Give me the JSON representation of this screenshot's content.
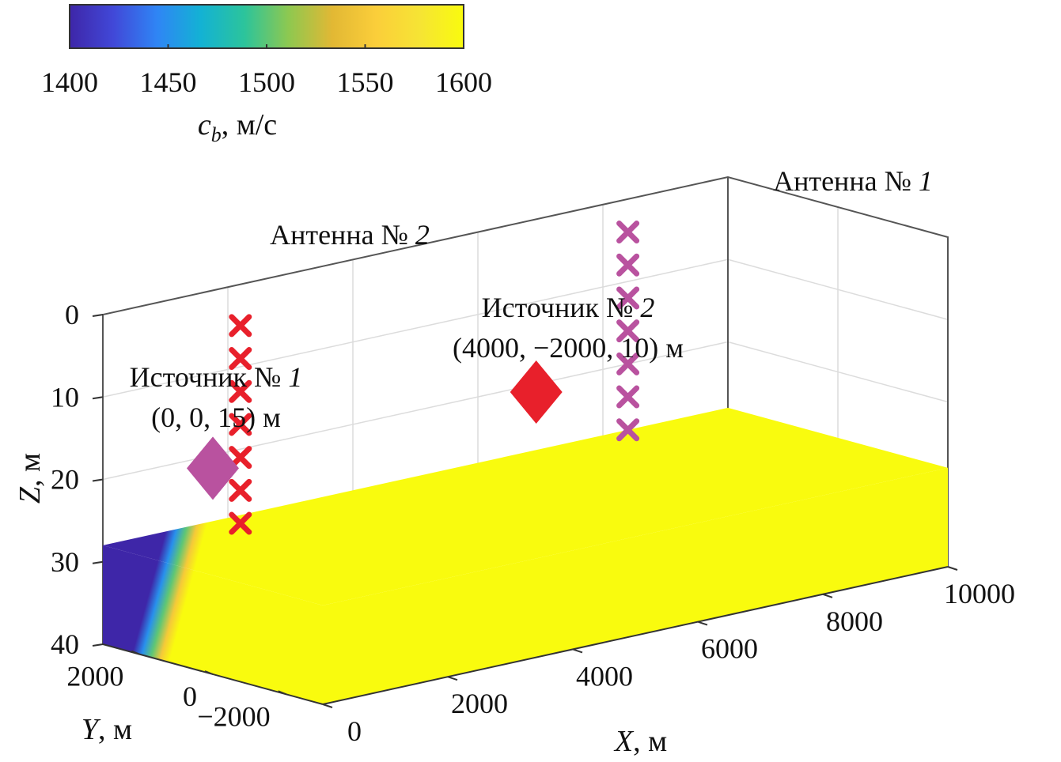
{
  "chart_data": {
    "type": "3d-scene",
    "colorbar": {
      "ticks": [
        "1400",
        "1450",
        "1500",
        "1550",
        "1600"
      ],
      "range": [
        1400,
        1600
      ],
      "label_var": "c",
      "label_sub": "b",
      "label_unit": ", м/с",
      "colormap": [
        "#3e26a8",
        "#4148d8",
        "#2f85f5",
        "#13b2d4",
        "#2cc49b",
        "#8ec850",
        "#e2b834",
        "#fbce3a",
        "#f6e434",
        "#f9fb0e"
      ]
    },
    "axes": {
      "x": {
        "var": "X",
        "unit": ", м",
        "ticks": [
          "0",
          "2000",
          "4000",
          "6000",
          "8000",
          "10000"
        ],
        "range": [
          0,
          10000
        ]
      },
      "y": {
        "var": "Y",
        "unit": ", м",
        "ticks": [
          "2000",
          "0",
          "−2000"
        ],
        "range": [
          -3000,
          3000
        ]
      },
      "z": {
        "var": "Z",
        "unit": ", м",
        "ticks": [
          "0",
          "10",
          "20",
          "30",
          "40"
        ],
        "range": [
          0,
          40
        ]
      },
      "grid": true
    },
    "bottom": {
      "depth_top": 28,
      "depth_bottom": 40,
      "sound_speed_profile_along_y": [
        {
          "y": 3000,
          "c": 1400
        },
        {
          "y": 1500,
          "c": 1400
        },
        {
          "y": 1000,
          "c": 1500
        },
        {
          "y": 500,
          "c": 1600
        },
        {
          "y": -3000,
          "c": 1600
        }
      ]
    },
    "antennas": [
      {
        "label_text": "Антенна № ",
        "label_num": "1",
        "x": 8400,
        "y": 3000,
        "z": [
          4,
          8,
          12,
          16,
          20,
          24,
          28
        ],
        "color": "#b9529f"
      },
      {
        "label_text": "Антенна № ",
        "label_num": "2",
        "x": 2200,
        "y": 3000,
        "z": [
          5,
          9,
          13,
          17,
          21,
          25,
          29
        ],
        "color": "#e8202b"
      }
    ],
    "sources": [
      {
        "label_text": "Источник № ",
        "label_num": "1",
        "coords": "(0, 0, 15) м",
        "x": 0,
        "y": 0,
        "z": 15,
        "color": "#b9529f"
      },
      {
        "label_text": "Источник № ",
        "label_num": "2",
        "coords": "(4000, −2000, 10) м",
        "x": 4000,
        "y": -2000,
        "z": 10,
        "color": "#e8202b"
      }
    ]
  }
}
